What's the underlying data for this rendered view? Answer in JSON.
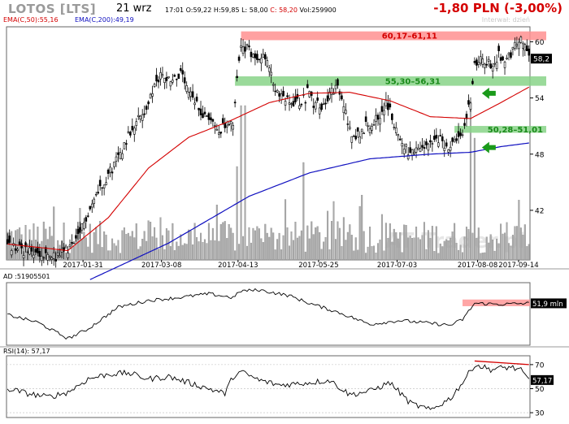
{
  "header": {
    "ticker": "LOTOS [LTS]",
    "date": "21 wrz",
    "time": "17:01",
    "open": "O:59,22",
    "high": "H:59,85",
    "low": "L: 58,00",
    "close": "C: 58,20",
    "volume": "Vol:259900",
    "change": "-1,80 PLN (-3,00%)",
    "interval": "Interwał: dzień"
  },
  "watermark": "AT Trader.pl",
  "colors": {
    "up": "#000000",
    "ema50": "#d40000",
    "ema200": "#1010c0",
    "zone": "#ff9090",
    "zone_green": "#88d488",
    "arrow": "#1a9a1a",
    "volume": "#aaaaaa"
  },
  "chart_data": [
    {
      "type": "candlestick",
      "panel": "price",
      "legend": [
        {
          "name": "EMA(C,50)",
          "value": "55,16"
        },
        {
          "name": "EMA(C,200)",
          "value": "49,19"
        }
      ],
      "x_ticks": [
        "2017-01-31",
        "2017-03-08",
        "2017-04-13",
        "2017-05-25",
        "2017-07-03",
        "2017-08-08",
        "2017-09-14"
      ],
      "y_ticks": [
        42,
        48,
        54,
        60
      ],
      "ylim": [
        36.7,
        61.6
      ],
      "last_price_label": "58,2",
      "close_anchors": [
        [
          0,
          38.2
        ],
        [
          10,
          37.6
        ],
        [
          18,
          37.0
        ],
        [
          24,
          37.0
        ],
        [
          28,
          37.6
        ],
        [
          34,
          38.5
        ],
        [
          40,
          41.8
        ],
        [
          46,
          44.5
        ],
        [
          52,
          46.5
        ],
        [
          58,
          49.0
        ],
        [
          62,
          51.0
        ],
        [
          68,
          52.5
        ],
        [
          72,
          54.5
        ],
        [
          76,
          56.5
        ],
        [
          82,
          56.0
        ],
        [
          86,
          56.5
        ],
        [
          90,
          54.5
        ],
        [
          96,
          52.5
        ],
        [
          100,
          52.0
        ],
        [
          104,
          50.5
        ],
        [
          108,
          51.0
        ],
        [
          112,
          51.0
        ],
        [
          114,
          55.8
        ],
        [
          116,
          60.0
        ],
        [
          118,
          59.5
        ],
        [
          122,
          58.5
        ],
        [
          126,
          58.7
        ],
        [
          130,
          57.5
        ],
        [
          132,
          55.0
        ],
        [
          136,
          54.0
        ],
        [
          140,
          53.5
        ],
        [
          144,
          53.5
        ],
        [
          148,
          54.0
        ],
        [
          150,
          55.2
        ],
        [
          152,
          53.5
        ],
        [
          156,
          53.0
        ],
        [
          160,
          54.5
        ],
        [
          164,
          55.0
        ],
        [
          168,
          52.5
        ],
        [
          170,
          50.5
        ],
        [
          174,
          50.0
        ],
        [
          178,
          51.0
        ],
        [
          182,
          51.5
        ],
        [
          186,
          52.5
        ],
        [
          188,
          53.5
        ],
        [
          190,
          52.5
        ],
        [
          194,
          50.0
        ],
        [
          198,
          48.5
        ],
        [
          202,
          48.0
        ],
        [
          206,
          48.5
        ],
        [
          210,
          49.0
        ],
        [
          214,
          49.5
        ],
        [
          218,
          49.0
        ],
        [
          222,
          49.0
        ],
        [
          226,
          50.0
        ],
        [
          230,
          54.0
        ],
        [
          232,
          57.5
        ],
        [
          236,
          58.0
        ],
        [
          240,
          57.5
        ],
        [
          244,
          58.5
        ],
        [
          248,
          58.0
        ],
        [
          252,
          59.5
        ],
        [
          256,
          60.2
        ],
        [
          259,
          58.2
        ]
      ],
      "ema50": [
        [
          0,
          38.4
        ],
        [
          30,
          37.7
        ],
        [
          50,
          41.2
        ],
        [
          70,
          46.5
        ],
        [
          90,
          49.8
        ],
        [
          110,
          51.5
        ],
        [
          130,
          53.5
        ],
        [
          150,
          54.5
        ],
        [
          170,
          54.6
        ],
        [
          190,
          53.7
        ],
        [
          210,
          52.0
        ],
        [
          230,
          51.8
        ],
        [
          245,
          53.5
        ],
        [
          259,
          55.16
        ]
      ],
      "ema200": [
        [
          0,
          33.5
        ],
        [
          40,
          34.5
        ],
        [
          80,
          38.5
        ],
        [
          120,
          43.5
        ],
        [
          150,
          46.0
        ],
        [
          180,
          47.5
        ],
        [
          210,
          48.0
        ],
        [
          230,
          48.2
        ],
        [
          245,
          48.8
        ],
        [
          259,
          49.19
        ]
      ],
      "zones": [
        {
          "label": "60,17–61,11",
          "low": 60.17,
          "high": 61.11,
          "color": "zone",
          "label_color": "#d40000"
        },
        {
          "label": "55,30–56,31",
          "low": 55.3,
          "high": 56.31,
          "color": "zone_green",
          "label_color": "#1a8a1a"
        },
        {
          "label": "50,28–51,01",
          "low": 50.28,
          "high": 51.01,
          "color": "zone_green",
          "label_color": "#1a8a1a"
        }
      ],
      "arrows": [
        {
          "bar": 234,
          "value": 54.5
        },
        {
          "bar": 234,
          "value": 48.7
        }
      ]
    },
    {
      "type": "line",
      "panel": "ad",
      "legend": [
        {
          "name": "AD",
          "value": "51905501"
        }
      ],
      "last_value_label": "51,9 mln",
      "anchors": [
        [
          0,
          0.0
        ],
        [
          15,
          -0.8
        ],
        [
          30,
          -2.5
        ],
        [
          40,
          -1.5
        ],
        [
          55,
          0.8
        ],
        [
          70,
          1.5
        ],
        [
          85,
          1.8
        ],
        [
          100,
          2.2
        ],
        [
          112,
          1.8
        ],
        [
          116,
          2.5
        ],
        [
          125,
          2.6
        ],
        [
          140,
          2.0
        ],
        [
          150,
          1.2
        ],
        [
          165,
          0.2
        ],
        [
          180,
          -1.0
        ],
        [
          195,
          -0.6
        ],
        [
          210,
          -0.9
        ],
        [
          220,
          -1.1
        ],
        [
          226,
          -0.5
        ],
        [
          232,
          1.2
        ],
        [
          245,
          1.1
        ],
        [
          259,
          1.2
        ]
      ],
      "ylim": [
        -3.2,
        3.2
      ],
      "zone": {
        "from_bar": 226,
        "low": 0.9,
        "high": 1.6
      }
    },
    {
      "type": "line",
      "panel": "rsi",
      "legend": [
        {
          "name": "RSI(14)",
          "value": "57,17"
        }
      ],
      "y_ticks": [
        30,
        50,
        70
      ],
      "ylim": [
        26,
        76
      ],
      "last_value_label": "57,17",
      "anchors": [
        [
          0,
          50
        ],
        [
          10,
          46
        ],
        [
          20,
          43
        ],
        [
          30,
          47
        ],
        [
          40,
          58
        ],
        [
          50,
          62
        ],
        [
          60,
          63
        ],
        [
          70,
          58
        ],
        [
          80,
          60
        ],
        [
          90,
          55
        ],
        [
          100,
          50
        ],
        [
          108,
          46
        ],
        [
          112,
          60
        ],
        [
          116,
          64
        ],
        [
          125,
          57
        ],
        [
          135,
          53
        ],
        [
          150,
          55
        ],
        [
          160,
          57
        ],
        [
          170,
          45
        ],
        [
          180,
          48
        ],
        [
          190,
          55
        ],
        [
          200,
          38
        ],
        [
          210,
          32
        ],
        [
          220,
          42
        ],
        [
          226,
          55
        ],
        [
          232,
          70
        ],
        [
          240,
          66
        ],
        [
          250,
          68
        ],
        [
          255,
          65
        ],
        [
          259,
          57
        ]
      ],
      "trendline": [
        [
          232,
          73
        ],
        [
          259,
          70
        ]
      ]
    }
  ]
}
